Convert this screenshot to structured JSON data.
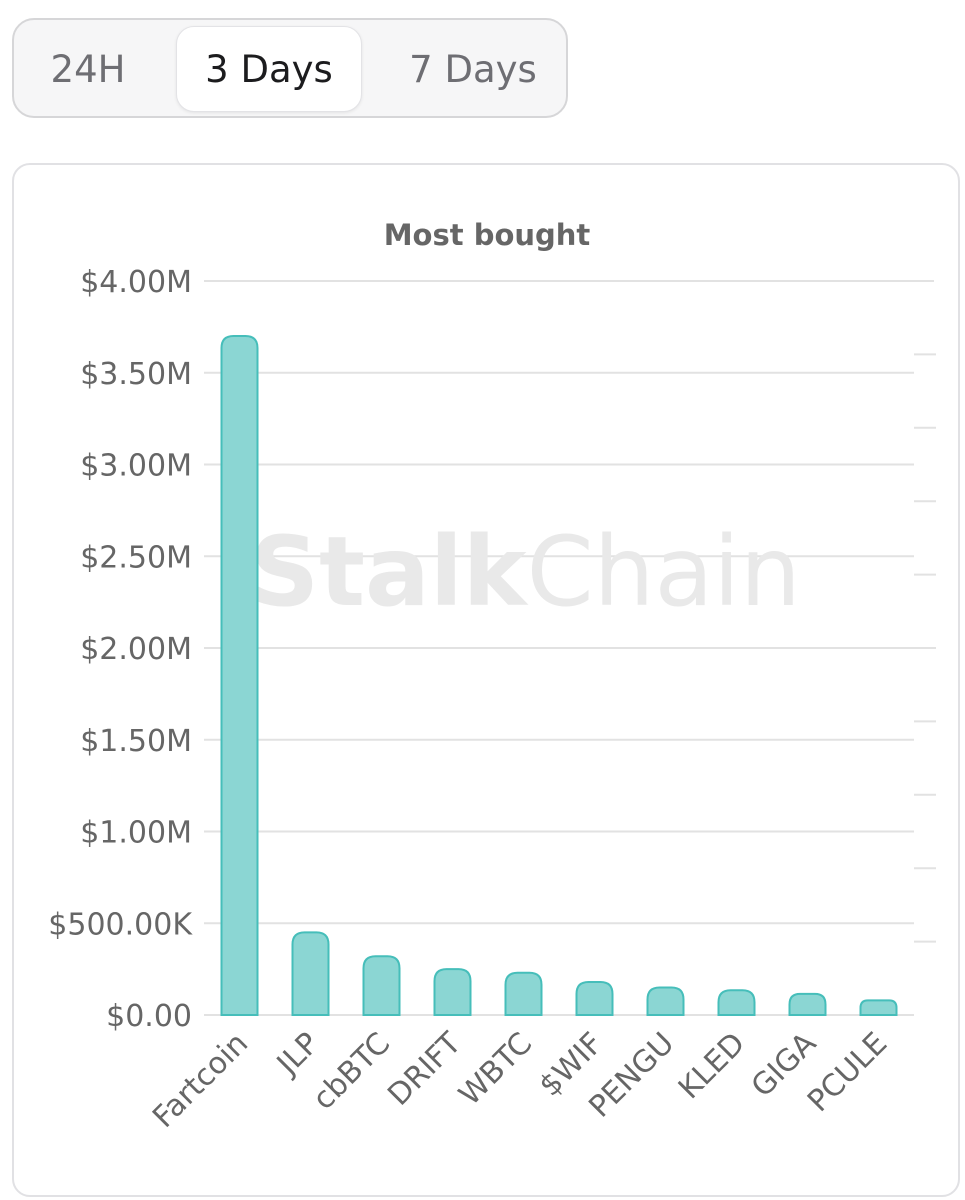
{
  "tabs": [
    {
      "label": "24H",
      "active": false
    },
    {
      "label": "3 Days",
      "active": true
    },
    {
      "label": "7 Days",
      "active": false
    }
  ],
  "watermark": {
    "part1": "Stalk",
    "part2": "Chain"
  },
  "colors": {
    "bar_fill": "#8bd6d3",
    "bar_stroke": "#46beba",
    "grid": "#e2e2e2",
    "text": "#666666"
  },
  "chart_data": {
    "type": "bar",
    "title": "Most bought",
    "categories": [
      "Fartcoin",
      "JLP",
      "cbBTC",
      "DRIFT",
      "WBTC",
      "$WIF",
      "PENGU",
      "KLED",
      "GIGA",
      "PCULE"
    ],
    "values": [
      3700000,
      450000,
      320000,
      250000,
      230000,
      180000,
      150000,
      135000,
      115000,
      80000
    ],
    "ylim": [
      0,
      4000000
    ],
    "yticks": [
      0,
      500000,
      1000000,
      1500000,
      2000000,
      2500000,
      3000000,
      3500000,
      4000000
    ],
    "ytick_labels": [
      "$0.00",
      "$500.00K",
      "$1.00M",
      "$1.50M",
      "$2.00M",
      "$2.50M",
      "$3.00M",
      "$3.50M",
      "$4.00M"
    ],
    "xlabel": "",
    "ylabel": "",
    "grid": true,
    "legend": "none"
  }
}
